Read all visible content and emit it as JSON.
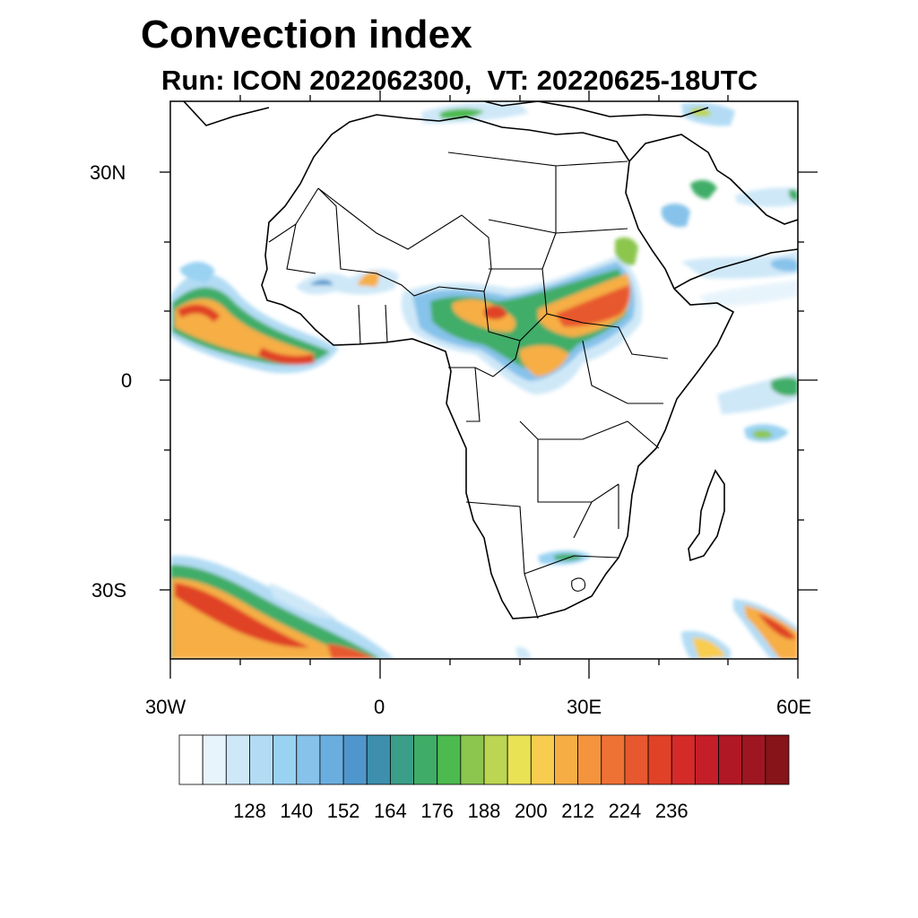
{
  "title": "Convection index",
  "subtitle": "Run: ICON 2022062300,  VT: 20220625-18UTC",
  "map": {
    "region": "Africa",
    "lon_range": [
      -30,
      60
    ],
    "lat_range": [
      -40,
      40
    ],
    "y_tick_labels": [
      "30N",
      "0",
      "30S"
    ],
    "x_tick_labels": [
      "30W",
      "0",
      "30E",
      "60E"
    ]
  },
  "colorbar": {
    "labels": [
      "128",
      "140",
      "152",
      "164",
      "176",
      "188",
      "200",
      "212",
      "224",
      "236"
    ],
    "colors": [
      "#ffffff",
      "#e8f4fc",
      "#cfe8f8",
      "#b3dcf4",
      "#9ad2f2",
      "#86c2ea",
      "#6aaedf",
      "#4f96cc",
      "#3d8fad",
      "#3b9e89",
      "#3fad67",
      "#4cba4e",
      "#8cc64e",
      "#bcd552",
      "#e9e255",
      "#f8cc4e",
      "#f6ae44",
      "#f4943d",
      "#ef7235",
      "#e8582e",
      "#e04228",
      "#d42a28",
      "#c41e28",
      "#b11826",
      "#9e1621",
      "#861418"
    ]
  }
}
